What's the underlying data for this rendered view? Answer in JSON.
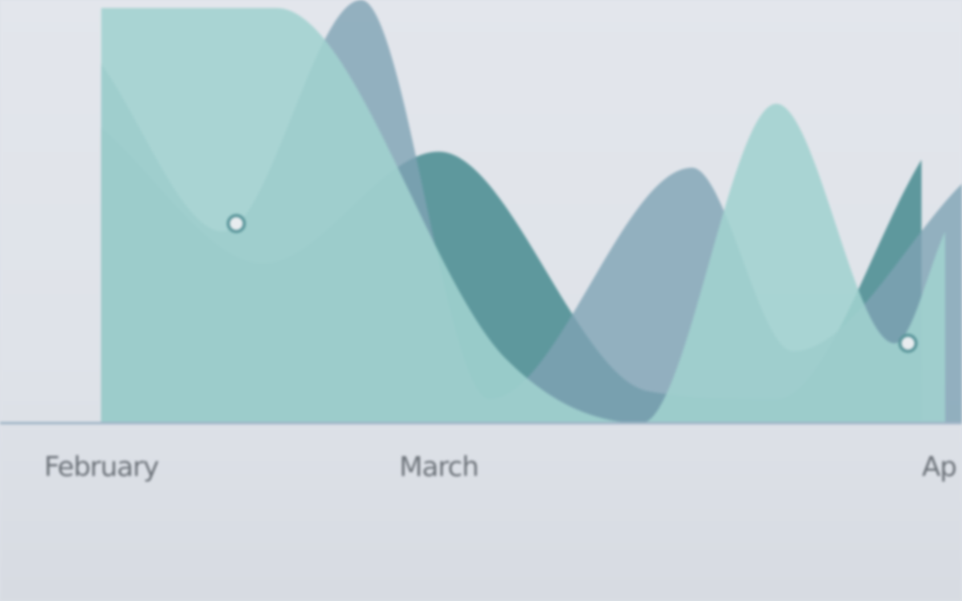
{
  "chart_data": {
    "type": "area",
    "categories": [
      "February",
      "March",
      "April"
    ],
    "visible_tick_labels": [
      "February",
      "March",
      "Ap"
    ],
    "xlabel": "",
    "ylabel": "",
    "series": [
      {
        "x": [
          0.0,
          0.48,
          1.0,
          1.62,
          2.0,
          2.43
        ],
        "values": [
          37,
          20,
          34,
          4,
          3,
          33
        ],
        "color": "#5b969b",
        "opacity": 0.98
      },
      {
        "x": [
          0.0,
          0.36,
          0.77,
          1.15,
          1.75,
          2.05,
          2.55
        ],
        "values": [
          45,
          24,
          53,
          3,
          32,
          9,
          30
        ],
        "color": "#7ea3b4",
        "opacity": 0.8
      },
      {
        "x": [
          0.0,
          0.52,
          1.2,
          1.6,
          2.0,
          2.35,
          2.5
        ],
        "values": [
          52,
          52,
          8,
          0,
          40,
          10,
          24
        ],
        "color": "#a0d2cf",
        "opacity": 0.88
      }
    ],
    "markers": [
      {
        "x": 0.4,
        "y": 25
      },
      {
        "x": 2.39,
        "y": 10
      }
    ],
    "ylim": [
      0,
      53
    ],
    "xlim": [
      -0.3,
      2.55
    ],
    "grid": false,
    "legend": "none",
    "colors": {
      "background": "#e1e5eb",
      "axis_line": "#9fb4c6",
      "tick_text": "#6b7178",
      "marker_stroke": "#5b969b",
      "marker_fill": "#e8ecef"
    }
  }
}
